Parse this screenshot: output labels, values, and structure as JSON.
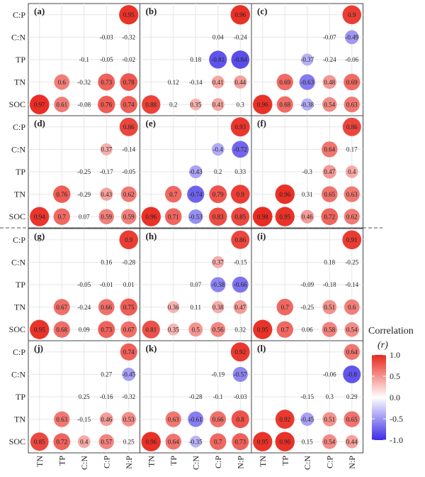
{
  "chart_data": {
    "type": "heatmap",
    "variables": [
      "TN",
      "TP",
      "C:N",
      "C:P",
      "N:P"
    ],
    "row_variables": [
      "C:P",
      "C:N",
      "TP",
      "TN",
      "SOC"
    ],
    "x_tick_labels": [
      "TN",
      "TP",
      "C:N",
      "C:P",
      "N:P"
    ],
    "y_tick_labels": [
      "C:P",
      "C:N",
      "TP",
      "TN",
      "SOC"
    ],
    "color_scale": {
      "low": "#3b2be6",
      "mid": "#ffffff",
      "high": "#e8281e",
      "range": [
        -1.0,
        1.0
      ],
      "ticks": [
        1.0,
        0.5,
        0.0,
        -0.5,
        -1.0
      ],
      "tick_labels": [
        "1.0",
        "0.5",
        "0.0",
        "-0.5",
        "-1.0"
      ]
    },
    "legend": {
      "title_line1": "Correlation",
      "title_line2": "(r)",
      "position": "right"
    },
    "grid": true,
    "panels": [
      {
        "label": "(a)",
        "rows": [
          [
            null,
            null,
            null,
            null,
            0.95
          ],
          [
            null,
            null,
            null,
            -0.03,
            -0.32
          ],
          [
            null,
            null,
            -0.1,
            -0.05,
            -0.02
          ],
          [
            null,
            0.6,
            -0.32,
            0.73,
            0.78
          ],
          [
            0.97,
            0.61,
            -0.08,
            0.76,
            0.74
          ]
        ]
      },
      {
        "label": "(b)",
        "rows": [
          [
            null,
            null,
            null,
            null,
            0.96
          ],
          [
            null,
            null,
            null,
            0.04,
            -0.24
          ],
          [
            null,
            null,
            0.18,
            -0.81,
            -0.84
          ],
          [
            null,
            0.12,
            -0.14,
            0.41,
            0.44
          ],
          [
            0.88,
            0.2,
            0.35,
            0.41,
            0.3
          ]
        ]
      },
      {
        "label": "(c)",
        "rows": [
          [
            null,
            null,
            null,
            null,
            0.9
          ],
          [
            null,
            null,
            null,
            -0.07,
            -0.49
          ],
          [
            null,
            null,
            -0.37,
            -0.24,
            -0.06
          ],
          [
            null,
            0.69,
            -0.63,
            0.48,
            0.69
          ],
          [
            0.96,
            0.68,
            -0.38,
            0.54,
            0.63
          ]
        ]
      },
      {
        "label": "(d)",
        "rows": [
          [
            null,
            null,
            null,
            null,
            0.86
          ],
          [
            null,
            null,
            null,
            0.37,
            -0.14
          ],
          [
            null,
            null,
            -0.25,
            -0.17,
            -0.05
          ],
          [
            null,
            0.76,
            -0.29,
            0.43,
            0.62
          ],
          [
            0.94,
            0.7,
            0.07,
            0.59,
            0.59
          ]
        ]
      },
      {
        "label": "(e)",
        "rows": [
          [
            null,
            null,
            null,
            null,
            0.93
          ],
          [
            null,
            null,
            null,
            -0.4,
            -0.72
          ],
          [
            null,
            null,
            -0.43,
            0.2,
            0.33
          ],
          [
            null,
            0.7,
            -0.74,
            0.79,
            0.9
          ],
          [
            0.96,
            0.71,
            -0.53,
            0.83,
            0.85
          ]
        ]
      },
      {
        "label": "(f)",
        "rows": [
          [
            null,
            null,
            null,
            null,
            0.86
          ],
          [
            null,
            null,
            null,
            0.64,
            0.17
          ],
          [
            null,
            null,
            -0.3,
            0.47,
            0.4
          ],
          [
            null,
            0.96,
            0.31,
            0.65,
            0.63
          ],
          [
            0.98,
            0.95,
            0.46,
            0.72,
            0.62
          ]
        ]
      },
      {
        "label": "(g)",
        "rows": [
          [
            null,
            null,
            null,
            null,
            0.9
          ],
          [
            null,
            null,
            null,
            0.16,
            -0.28
          ],
          [
            null,
            null,
            -0.05,
            -0.01,
            0.01
          ],
          [
            null,
            0.67,
            -0.24,
            0.66,
            0.75
          ],
          [
            0.95,
            0.68,
            0.09,
            0.73,
            0.67
          ]
        ]
      },
      {
        "label": "(h)",
        "rows": [
          [
            null,
            null,
            null,
            null,
            0.86
          ],
          [
            null,
            null,
            null,
            0.37,
            -0.15
          ],
          [
            null,
            null,
            0.07,
            -0.58,
            -0.66
          ],
          [
            null,
            0.36,
            0.11,
            0.38,
            0.47
          ],
          [
            0.81,
            0.35,
            0.5,
            0.56,
            0.32
          ]
        ]
      },
      {
        "label": "(i)",
        "rows": [
          [
            null,
            null,
            null,
            null,
            0.91
          ],
          [
            null,
            null,
            null,
            0.18,
            -0.25
          ],
          [
            null,
            null,
            -0.09,
            -0.18,
            -0.14
          ],
          [
            null,
            0.7,
            -0.25,
            0.51,
            0.6
          ],
          [
            0.95,
            0.7,
            0.06,
            0.58,
            0.54
          ]
        ]
      },
      {
        "label": "(j)",
        "rows": [
          [
            null,
            null,
            null,
            null,
            0.74
          ],
          [
            null,
            null,
            null,
            0.27,
            -0.45
          ],
          [
            null,
            null,
            0.25,
            -0.16,
            -0.32
          ],
          [
            null,
            0.63,
            -0.15,
            0.46,
            0.53
          ],
          [
            0.85,
            0.72,
            0.4,
            0.57,
            0.25
          ]
        ]
      },
      {
        "label": "(k)",
        "rows": [
          [
            null,
            null,
            null,
            null,
            0.92
          ],
          [
            null,
            null,
            null,
            -0.19,
            -0.57
          ],
          [
            null,
            null,
            -0.28,
            -0.1,
            -0.03
          ],
          [
            null,
            0.63,
            -0.61,
            0.66,
            0.8
          ],
          [
            0.96,
            0.64,
            -0.35,
            0.7,
            0.73
          ]
        ]
      },
      {
        "label": "(l)",
        "rows": [
          [
            null,
            null,
            null,
            null,
            0.64
          ],
          [
            null,
            null,
            null,
            -0.06,
            -0.8
          ],
          [
            null,
            null,
            -0.15,
            0.3,
            0.29
          ],
          [
            null,
            0.92,
            -0.45,
            0.51,
            0.65
          ],
          [
            0.95,
            0.96,
            0.15,
            0.54,
            0.44
          ]
        ]
      }
    ],
    "circle_threshold": 0.35
  }
}
